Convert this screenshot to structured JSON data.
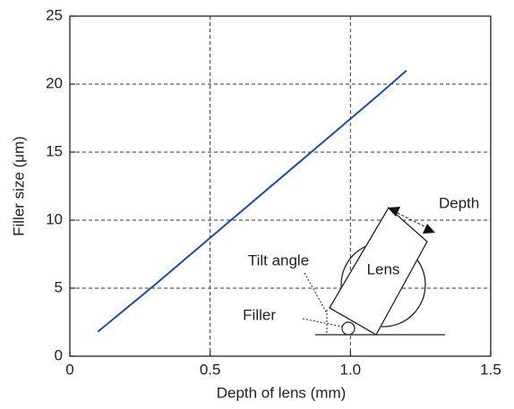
{
  "chart_data": {
    "type": "line",
    "x_label": "Depth of lens (mm)",
    "y_label": "Filler size (μm)",
    "series": [
      {
        "name": null,
        "color": "#1f4e9c",
        "x": [
          0.1,
          0.3,
          0.5,
          0.7,
          0.9,
          1.1,
          1.2
        ],
        "values": [
          1.8,
          5.2,
          8.7,
          12.2,
          15.7,
          19.2,
          21.0
        ]
      }
    ],
    "xlim": [
      0,
      1.5
    ],
    "xticks": [
      0,
      0.5,
      {
        "value": 1,
        "label": "1.0"
      },
      1.5
    ],
    "ylim": [
      0,
      25
    ],
    "yticks": [
      0,
      5,
      10,
      15,
      20,
      25
    ],
    "grid": true,
    "annotations": [
      "Depth",
      "Lens",
      "Tilt angle",
      "Filler"
    ]
  }
}
